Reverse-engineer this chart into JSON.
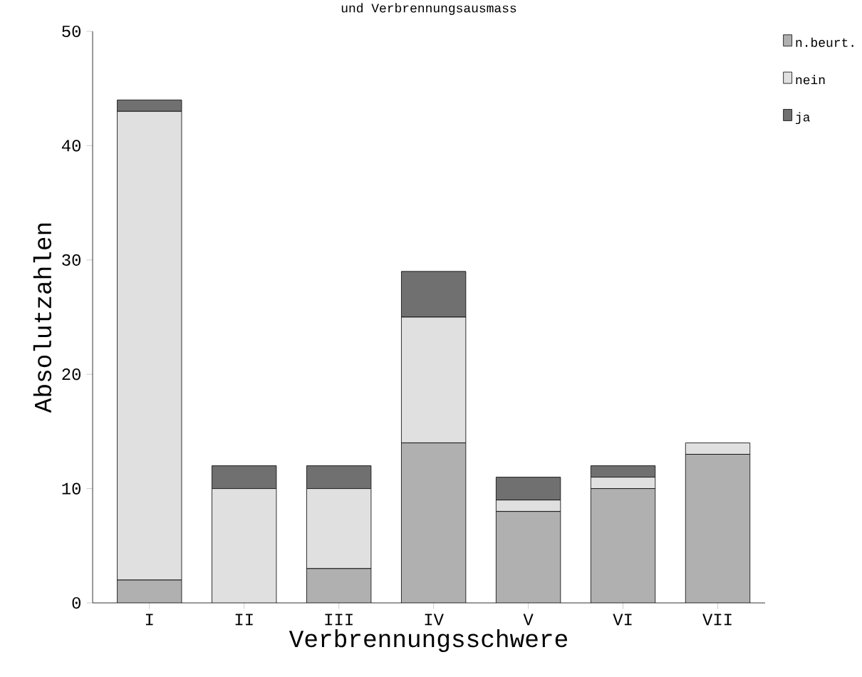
{
  "chart_data": {
    "type": "bar",
    "stacked": true,
    "title": "und Verbrennungsausmass",
    "xlabel": "Verbrennungsschwere",
    "ylabel": "Absolutzahlen",
    "categories": [
      "I",
      "II",
      "III",
      "IV",
      "V",
      "VI",
      "VII"
    ],
    "series": [
      {
        "name": "n.beurt.",
        "color": "#b0b0b0",
        "values": [
          2,
          0,
          3,
          14,
          8,
          10,
          13
        ]
      },
      {
        "name": "nein",
        "color": "#e0e0e0",
        "values": [
          41,
          10,
          7,
          11,
          1,
          1,
          1
        ]
      },
      {
        "name": "ja",
        "color": "#707070",
        "values": [
          1,
          2,
          2,
          4,
          2,
          1,
          0
        ]
      }
    ],
    "ylim": [
      0,
      50
    ],
    "yticks": [
      0,
      10,
      20,
      30,
      40,
      50
    ],
    "legend": "top right"
  }
}
